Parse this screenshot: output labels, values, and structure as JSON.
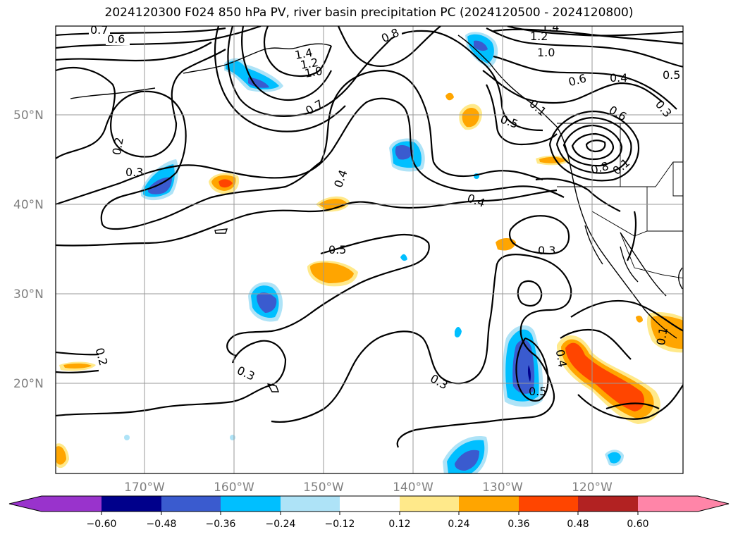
{
  "title": "2024120300 F024 850 hPa PV, river basin precipitation PC (2024120500 - 2024120800)",
  "colors": {
    "purple": "#9933cc",
    "navy": "#00008b",
    "blue": "#3a5bcf",
    "cyan": "#00bfff",
    "lightblue": "#aee3f7",
    "white": "#ffffff",
    "yellow": "#ffe98a",
    "orange": "#ffa500",
    "orangered": "#ff4500",
    "firebrick": "#b22222",
    "pink": "#ff85a8"
  },
  "axes": {
    "lat_labels": [
      "50°N",
      "40°N",
      "30°N",
      "20°N"
    ],
    "lon_labels": [
      "170°W",
      "160°W",
      "150°W",
      "140°W",
      "130°W",
      "120°W"
    ]
  },
  "contour_labels": [
    "0.7",
    "0.6",
    "0.8",
    "1.4",
    "1.2",
    "1.0",
    "1.4",
    "1.2",
    "1.0",
    "0.6",
    "0.4",
    "0.5",
    "0.3",
    "0.7",
    "0.5",
    "0.6",
    "0.8",
    "0.1",
    "0.2",
    "0.3",
    "0.4",
    "0.4",
    "0.5",
    "0.3",
    "0.2",
    "0.3",
    "0.3",
    "0.4",
    "0.5",
    "0.1",
    "0.1"
  ],
  "colorbar": {
    "ticks": [
      "−0.60",
      "−0.48",
      "−0.36",
      "−0.24",
      "−0.12",
      "0.12",
      "0.24",
      "0.36",
      "0.48",
      "0.60"
    ]
  }
}
